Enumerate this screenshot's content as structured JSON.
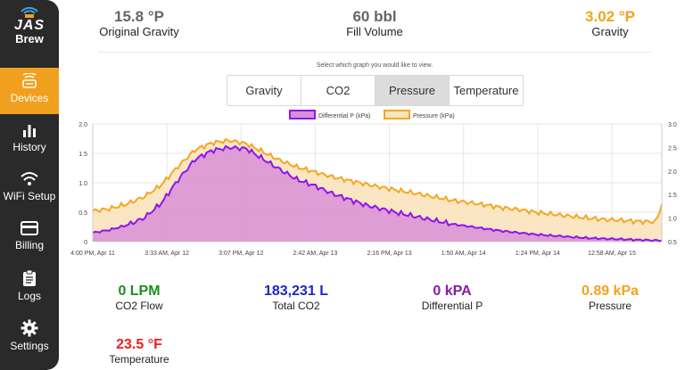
{
  "sidebar": {
    "logo_main": "JAS",
    "logo_sub": "Brew",
    "items": [
      {
        "label": "Devices",
        "icon": "device-icon"
      },
      {
        "label": "History",
        "icon": "bar-chart-icon"
      },
      {
        "label": "WiFi Setup",
        "icon": "wifi-icon"
      },
      {
        "label": "Billing",
        "icon": "credit-card-icon"
      },
      {
        "label": "Logs",
        "icon": "clipboard-icon"
      },
      {
        "label": "Settings",
        "icon": "gear-icon"
      }
    ]
  },
  "header": {
    "original_gravity": {
      "value": "15.8 °P",
      "label": "Original Gravity"
    },
    "fill_volume": {
      "value": "60 bbl",
      "label": "Fill Volume"
    },
    "gravity": {
      "value": "3.02 °P",
      "label": "Gravity"
    }
  },
  "graph_select": {
    "hint": "Select which graph you would like to view.",
    "tabs": [
      "Gravity",
      "CO2",
      "Pressure",
      "Temperature"
    ],
    "selected": "Pressure"
  },
  "colors": {
    "accent": "#f0a01e",
    "differential": "#8f16e8",
    "differential_fill": "#d88fd8",
    "pressure": "#f5a623",
    "pressure_fill": "#fbe3bd",
    "green": "#1a8f1a",
    "blue": "#1d27c9",
    "purple": "#8b1aa8",
    "orange": "#f5a21e",
    "red": "#ee1d1d"
  },
  "chart_data": {
    "type": "area",
    "x_ticks": [
      "4:00 PM, Apr 11",
      "3:33 AM, Apr 12",
      "3:07 PM, Apr 12",
      "2:42 AM, Apr 13",
      "2:16 PM, Apr 13",
      "1:50 AM, Apr 14",
      "1:24 PM, Apr 14",
      "12:58 AM, Apr 15"
    ],
    "y_left_ticks": [
      "2.0",
      "1.5",
      "1.0",
      "0.5",
      "0"
    ],
    "y_right_ticks": [
      "3.0",
      "2.5",
      "2.0",
      "1.5",
      "1.0",
      "0.5"
    ],
    "y_left_range": [
      0,
      2
    ],
    "y_right_range": [
      0.5,
      3
    ],
    "x": [
      0,
      0.03,
      0.06,
      0.09,
      0.12,
      0.15,
      0.18,
      0.21,
      0.24,
      0.27,
      0.3,
      0.33,
      0.36,
      0.39,
      0.42,
      0.45,
      0.48,
      0.51,
      0.54,
      0.57,
      0.6,
      0.63,
      0.66,
      0.69,
      0.72,
      0.75,
      0.78,
      0.81,
      0.84,
      0.87,
      0.9,
      0.93,
      0.96,
      0.99,
      1.0
    ],
    "series": [
      {
        "name": "Differential P (kPa)",
        "axis": "left",
        "values": [
          0.15,
          0.2,
          0.28,
          0.4,
          0.65,
          1.05,
          1.4,
          1.55,
          1.6,
          1.58,
          1.4,
          1.22,
          1.05,
          0.95,
          0.82,
          0.72,
          0.62,
          0.55,
          0.48,
          0.42,
          0.36,
          0.3,
          0.26,
          0.22,
          0.18,
          0.15,
          0.12,
          0.1,
          0.08,
          0.06,
          0.05,
          0.04,
          0.03,
          0.02,
          0.02
        ]
      },
      {
        "name": "Pressure (kPa)",
        "axis": "right",
        "values": [
          1.15,
          1.2,
          1.3,
          1.45,
          1.7,
          2.1,
          2.45,
          2.6,
          2.65,
          2.58,
          2.4,
          2.22,
          2.08,
          1.98,
          1.88,
          1.8,
          1.72,
          1.65,
          1.58,
          1.52,
          1.45,
          1.38,
          1.33,
          1.28,
          1.22,
          1.18,
          1.12,
          1.08,
          1.04,
          1.0,
          0.97,
          0.95,
          0.93,
          0.92,
          1.3
        ]
      }
    ],
    "legend_position": "top-center",
    "grid": true
  },
  "readings": [
    {
      "value": "0 LPM",
      "label": "CO2 Flow",
      "color": "#1a8f1a"
    },
    {
      "value": "183,231 L",
      "label": "Total CO2",
      "color": "#1d27c9"
    },
    {
      "value": "0 kPA",
      "label": "Differential P",
      "color": "#8b1aa8"
    },
    {
      "value": "0.89 kPa",
      "label": "Pressure",
      "color": "#f5a21e"
    },
    {
      "value": "23.5 °F",
      "label": "Temperature",
      "color": "#ee1d1d"
    }
  ]
}
